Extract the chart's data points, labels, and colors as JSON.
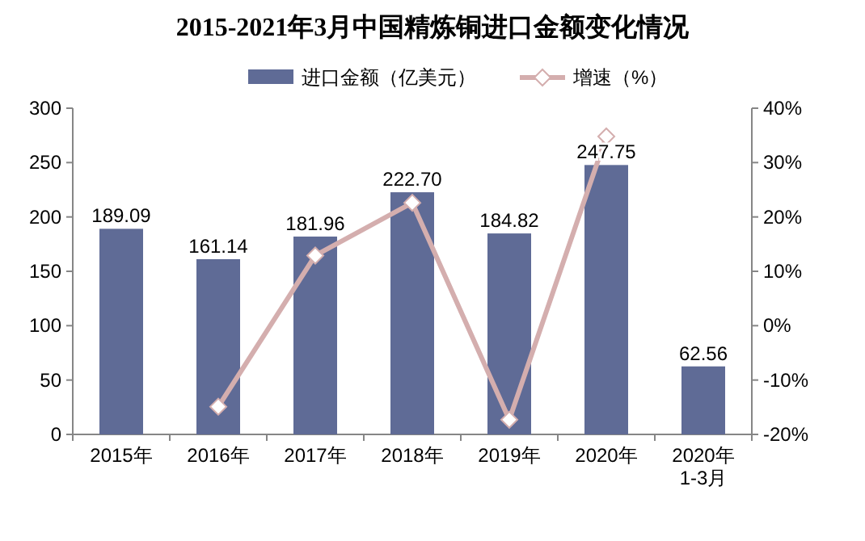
{
  "chart_data": {
    "type": "bar",
    "title": "2015-2021年3月中国精炼铜进口金额变化情况",
    "categories": [
      "2015年",
      "2016年",
      "2017年",
      "2018年",
      "2019年",
      "2020年",
      "2020年\n1-3月"
    ],
    "series": [
      {
        "name": "进口金额（亿美元）",
        "type": "bar",
        "color": "#5f6b96",
        "values": [
          189.09,
          161.14,
          181.96,
          222.7,
          184.82,
          247.75,
          62.56
        ],
        "value_labels": [
          "189.09",
          "161.14",
          "181.96",
          "222.70",
          "184.82",
          "247.75",
          "62.56"
        ]
      },
      {
        "name": "增速（%）",
        "type": "line",
        "axis": "y2",
        "color": "#d4aeae",
        "marker": "diamond",
        "values": [
          null,
          -14.9,
          12.9,
          22.6,
          -17.3,
          34.8,
          null
        ]
      }
    ],
    "ylim": [
      0,
      300
    ],
    "yticks": [
      0,
      50,
      100,
      150,
      200,
      250,
      300
    ],
    "y2lim": [
      -20,
      40
    ],
    "y2ticks": [
      {
        "value": -20,
        "label": "-20%"
      },
      {
        "value": -10,
        "label": "-10%"
      },
      {
        "value": 0,
        "label": "0%"
      },
      {
        "value": 10,
        "label": "10%"
      },
      {
        "value": 20,
        "label": "20%"
      },
      {
        "value": 30,
        "label": "30%"
      },
      {
        "value": 40,
        "label": "40%"
      }
    ],
    "legend": "top",
    "grid": false
  }
}
